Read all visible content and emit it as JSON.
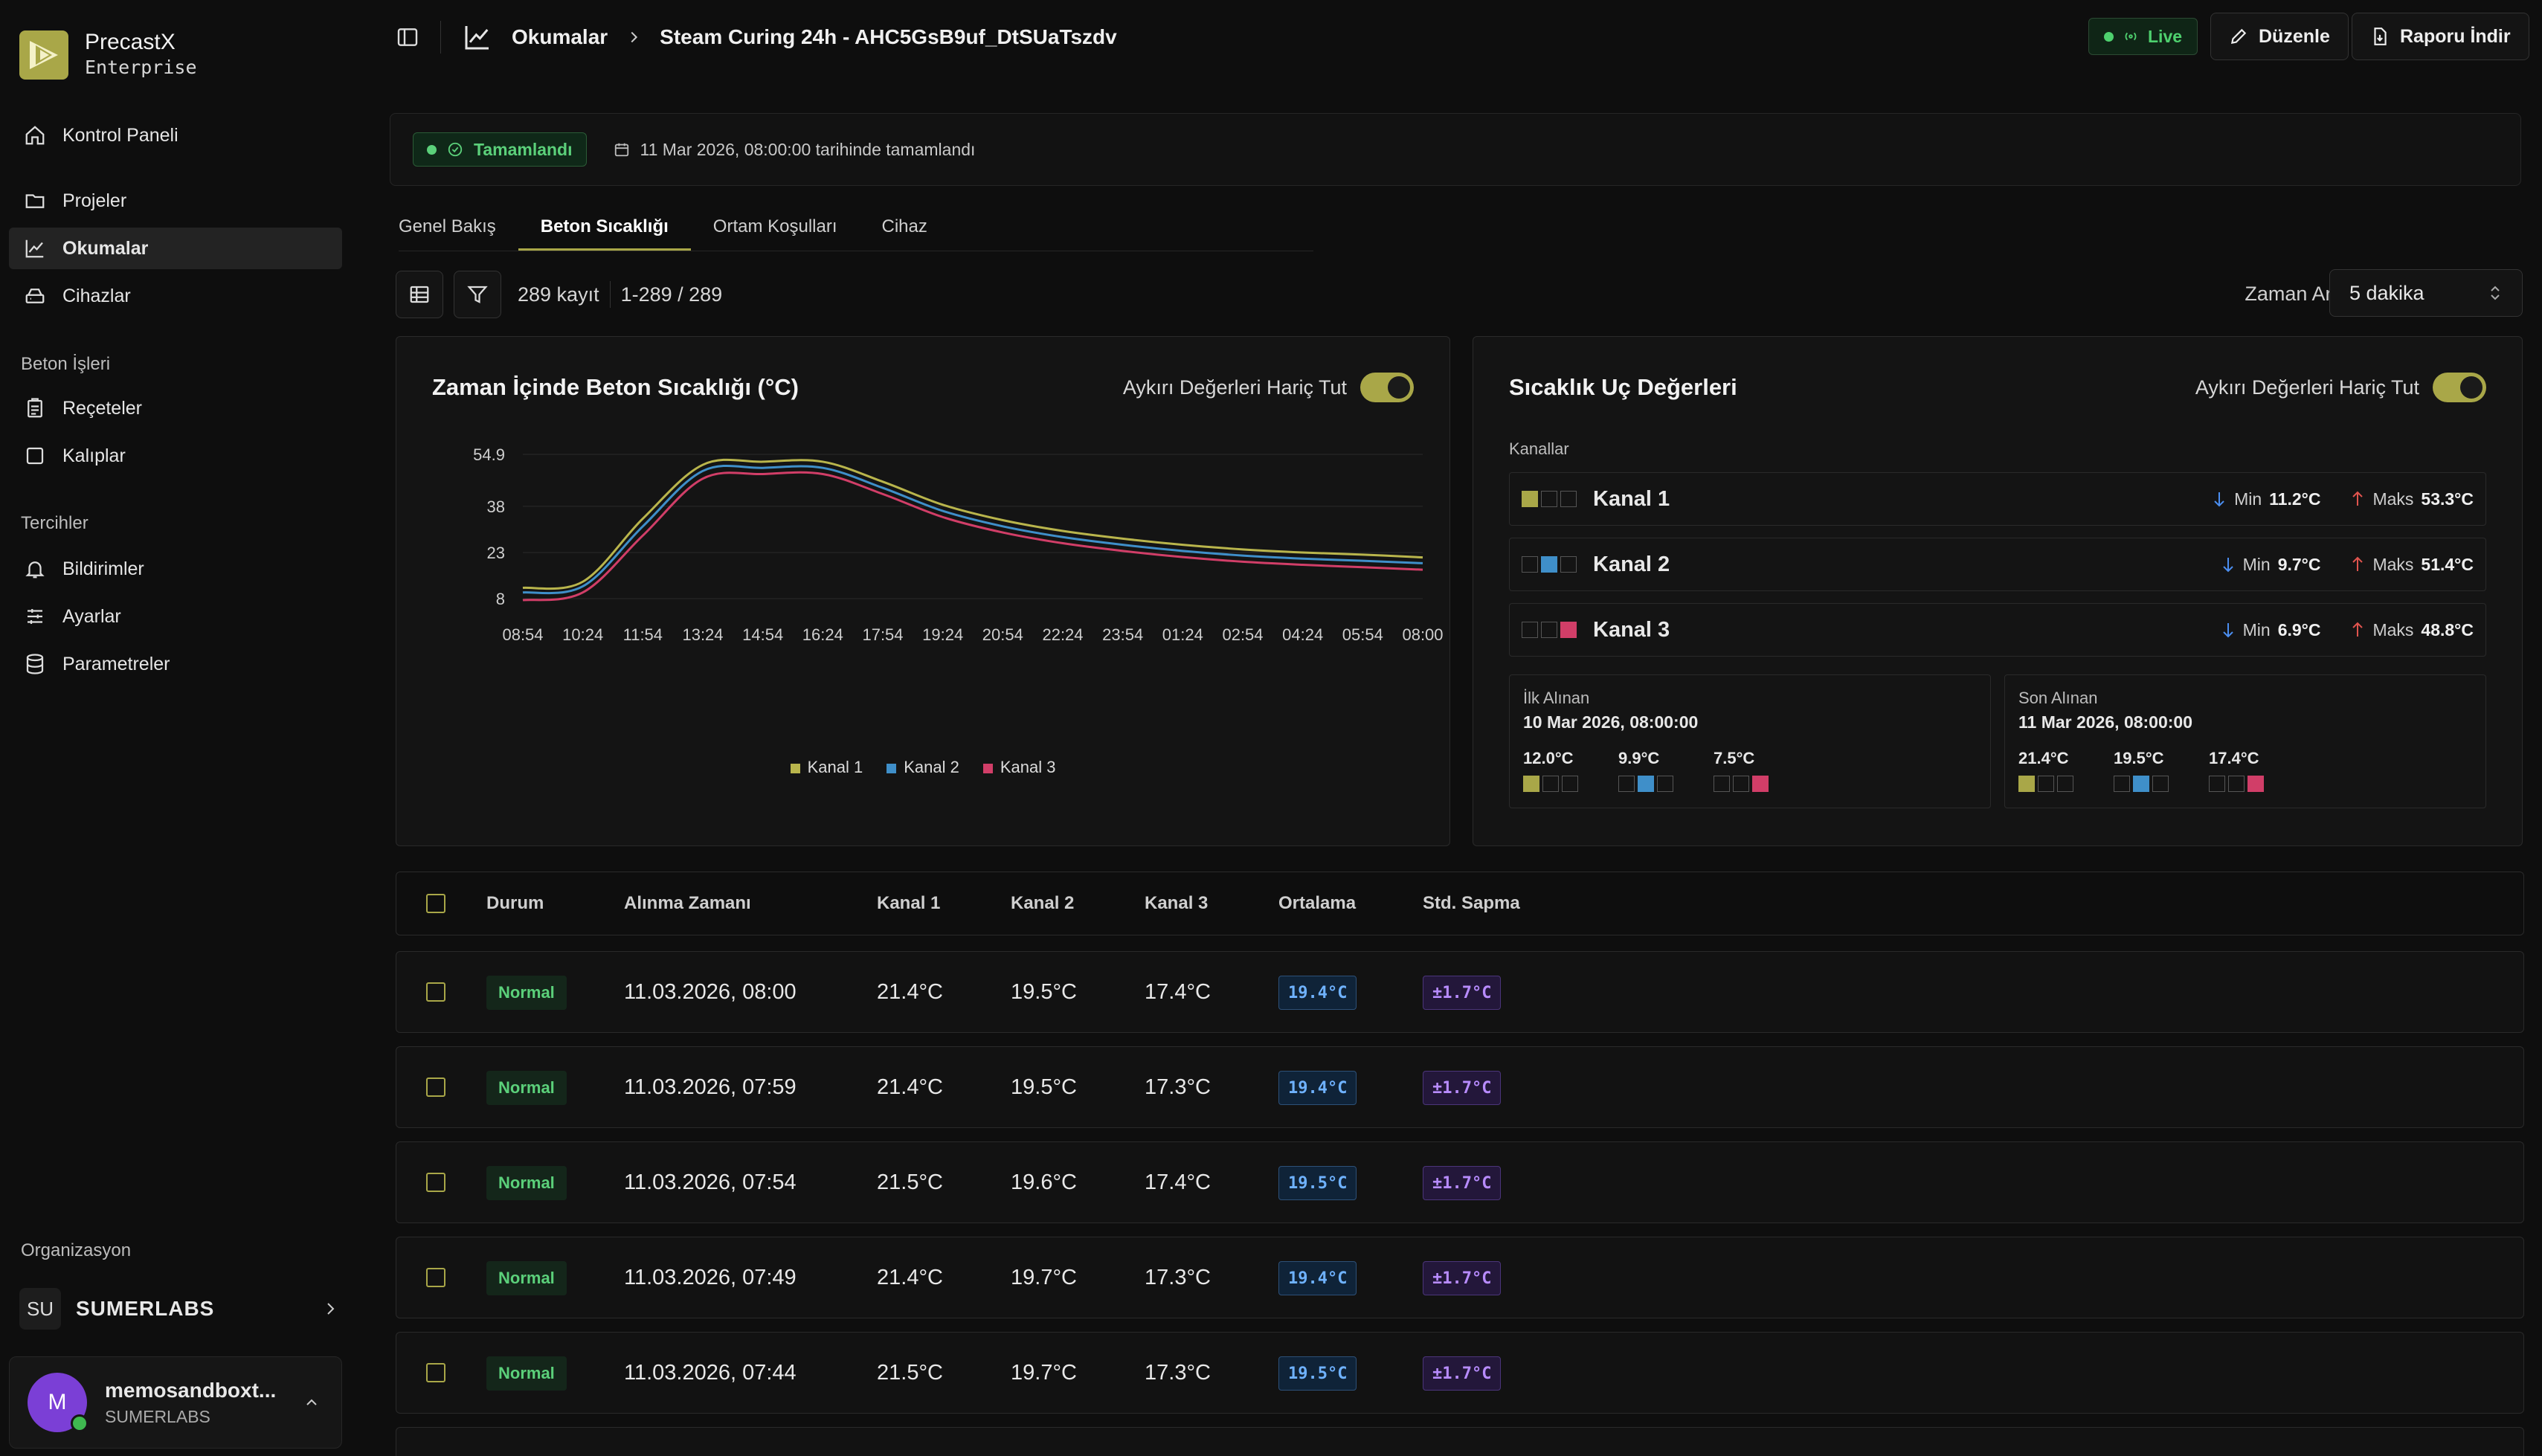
{
  "brand": {
    "name": "PrecastX",
    "edition": "Enterprise",
    "color": "#a9a748"
  },
  "sidebar": {
    "items": [
      {
        "label": "Kontrol Paneli",
        "icon": "home-icon"
      },
      {
        "label": "Projeler",
        "icon": "folder-icon"
      },
      {
        "label": "Okumalar",
        "icon": "chart-line-icon",
        "active": true
      },
      {
        "label": "Cihazlar",
        "icon": "device-icon"
      }
    ],
    "section_beton": "Beton İşleri",
    "beton_items": [
      {
        "label": "Reçeteler",
        "icon": "clipboard-icon"
      },
      {
        "label": "Kalıplar",
        "icon": "square-icon"
      }
    ],
    "section_prefs": "Tercihler",
    "pref_items": [
      {
        "label": "Bildirimler",
        "icon": "bell-icon"
      },
      {
        "label": "Ayarlar",
        "icon": "sliders-icon"
      },
      {
        "label": "Parametreler",
        "icon": "database-icon"
      }
    ],
    "org_section": "Organizasyon",
    "org": {
      "initials": "SU",
      "name": "SUMERLABS"
    },
    "user": {
      "initial": "M",
      "name": "memosandboxt...",
      "org": "SUMERLABS"
    }
  },
  "header": {
    "breadcrumb_root": "Okumalar",
    "breadcrumb_current": "Steam Curing 24h - AHC5GsB9uf_DtSUaTszdv",
    "live_label": "Live",
    "edit_label": "Düzenle",
    "download_label": "Raporu İndir"
  },
  "status": {
    "badge": "Tamamlandı",
    "text": "11 Mar 2026, 08:00:00 tarihinde tamamlandı"
  },
  "tabs": [
    {
      "label": "Genel Bakış"
    },
    {
      "label": "Beton Sıcaklığı",
      "active": true
    },
    {
      "label": "Ortam Koşulları"
    },
    {
      "label": "Cihaz"
    }
  ],
  "toolbar": {
    "record_count": "289 kayıt",
    "range_text": "1-289 / 289",
    "interval_label": "Zaman Aralığı:",
    "interval_value": "5 dakika"
  },
  "chart_card": {
    "title": "Zaman İçinde Beton Sıcaklığı (°C)",
    "toggle_label": "Aykırı Değerleri Hariç Tut"
  },
  "chart_data": {
    "type": "line",
    "x": [
      "08:54",
      "10:24",
      "11:54",
      "13:24",
      "14:54",
      "16:24",
      "17:54",
      "19:24",
      "20:54",
      "22:24",
      "23:54",
      "01:24",
      "02:54",
      "04:24",
      "05:54",
      "08:00"
    ],
    "yticks": [
      8,
      23,
      38,
      54.9
    ],
    "ylim": [
      8,
      54.9
    ],
    "series": [
      {
        "name": "Kanal 1",
        "color": "#b9b54c",
        "values": [
          11.5,
          13.5,
          34.0,
          51.5,
          52.5,
          52.5,
          46.0,
          38.5,
          33.5,
          30.0,
          27.5,
          25.5,
          24.0,
          23.0,
          22.3,
          21.4
        ]
      },
      {
        "name": "Kanal 2",
        "color": "#3f8fc9",
        "values": [
          10.0,
          12.0,
          31.5,
          49.5,
          50.5,
          50.5,
          44.0,
          36.5,
          31.5,
          28.0,
          25.5,
          23.5,
          22.0,
          21.0,
          20.3,
          19.5
        ]
      },
      {
        "name": "Kanal 3",
        "color": "#d13e68",
        "values": [
          7.5,
          10.0,
          28.5,
          47.0,
          48.5,
          48.5,
          42.0,
          34.5,
          29.5,
          26.0,
          23.5,
          21.5,
          20.0,
          19.0,
          18.2,
          17.4
        ]
      }
    ],
    "legend": "bottom-center",
    "grid": true
  },
  "extremes_card": {
    "title": "Sıcaklık Uç Değerleri",
    "toggle_label": "Aykırı Değerleri Hariç Tut",
    "channels_label": "Kanallar",
    "min_label": "Min",
    "max_label": "Maks",
    "channels": [
      {
        "name": "Kanal 1",
        "min": "11.2°C",
        "max": "53.3°C"
      },
      {
        "name": "Kanal 2",
        "min": "9.7°C",
        "max": "51.4°C"
      },
      {
        "name": "Kanal 3",
        "min": "6.9°C",
        "max": "48.8°C"
      }
    ],
    "first": {
      "label": "İlk Alınan",
      "date": "10 Mar 2026, 08:00:00",
      "values": [
        "12.0°C",
        "9.9°C",
        "7.5°C"
      ]
    },
    "last": {
      "label": "Son Alınan",
      "date": "11 Mar 2026, 08:00:00",
      "values": [
        "21.4°C",
        "19.5°C",
        "17.4°C"
      ]
    }
  },
  "table": {
    "headers": {
      "status": "Durum",
      "time": "Alınma Zamanı",
      "k1": "Kanal 1",
      "k2": "Kanal 2",
      "k3": "Kanal 3",
      "avg": "Ortalama",
      "std": "Std. Sapma"
    },
    "rows": [
      {
        "status": "Normal",
        "time": "11.03.2026, 08:00",
        "k1": "21.4°C",
        "k2": "19.5°C",
        "k3": "17.4°C",
        "avg": "19.4°C",
        "std": "±1.7°C"
      },
      {
        "status": "Normal",
        "time": "11.03.2026, 07:59",
        "k1": "21.4°C",
        "k2": "19.5°C",
        "k3": "17.3°C",
        "avg": "19.4°C",
        "std": "±1.7°C"
      },
      {
        "status": "Normal",
        "time": "11.03.2026, 07:54",
        "k1": "21.5°C",
        "k2": "19.6°C",
        "k3": "17.4°C",
        "avg": "19.5°C",
        "std": "±1.7°C"
      },
      {
        "status": "Normal",
        "time": "11.03.2026, 07:49",
        "k1": "21.4°C",
        "k2": "19.7°C",
        "k3": "17.3°C",
        "avg": "19.4°C",
        "std": "±1.7°C"
      },
      {
        "status": "Normal",
        "time": "11.03.2026, 07:44",
        "k1": "21.5°C",
        "k2": "19.7°C",
        "k3": "17.3°C",
        "avg": "19.5°C",
        "std": "±1.7°C"
      }
    ]
  }
}
